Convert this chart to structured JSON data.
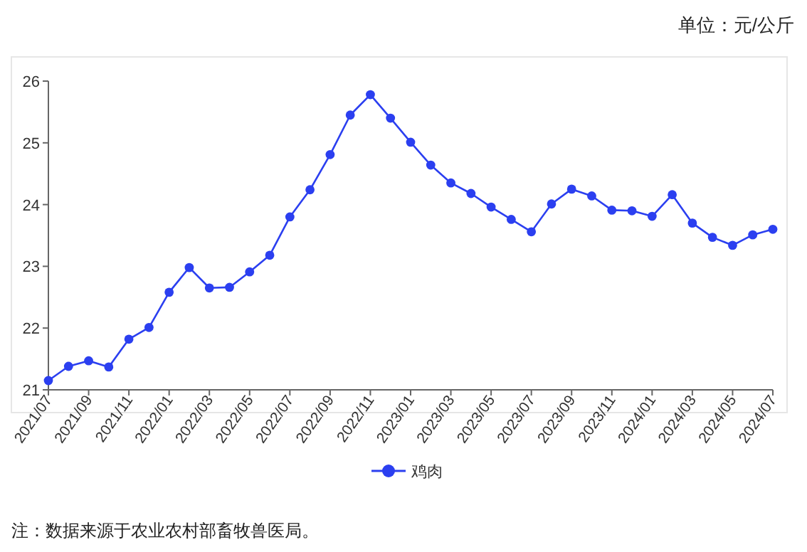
{
  "chart_data": {
    "type": "line",
    "ylabel": "单位：元/公斤",
    "categories": [
      "2021/07",
      null,
      "2021/09",
      null,
      "2021/11",
      null,
      "2022/01",
      null,
      "2022/03",
      null,
      "2022/05",
      null,
      "2022/07",
      null,
      "2022/09",
      null,
      "2022/11",
      null,
      "2023/01",
      null,
      "2023/03",
      null,
      "2023/05",
      null,
      "2023/07",
      null,
      "2023/09",
      null,
      "2023/11",
      null,
      "2024/01",
      null,
      "2024/03",
      null,
      "2024/05",
      null,
      "2024/07"
    ],
    "series": [
      {
        "name": "鸡肉",
        "color": "#2b3ff0",
        "values": [
          21.15,
          21.38,
          21.47,
          21.37,
          21.82,
          22.01,
          22.58,
          22.98,
          22.65,
          22.66,
          22.91,
          23.18,
          23.8,
          24.24,
          24.81,
          25.45,
          25.78,
          25.4,
          25.01,
          24.64,
          24.35,
          24.18,
          23.96,
          23.76,
          23.56,
          24.01,
          24.25,
          24.14,
          23.91,
          23.9,
          23.81,
          24.16,
          23.7,
          23.47,
          23.34,
          23.51,
          23.6
        ]
      }
    ],
    "ylim": [
      21,
      26
    ],
    "yticks": [
      21,
      22,
      23,
      24,
      25,
      26
    ],
    "grid": false,
    "legend": "bottom",
    "marker": "circle",
    "line_style": "solid",
    "annotations": [
      "注：数据来源于农业农村部畜牧兽医局。"
    ]
  }
}
